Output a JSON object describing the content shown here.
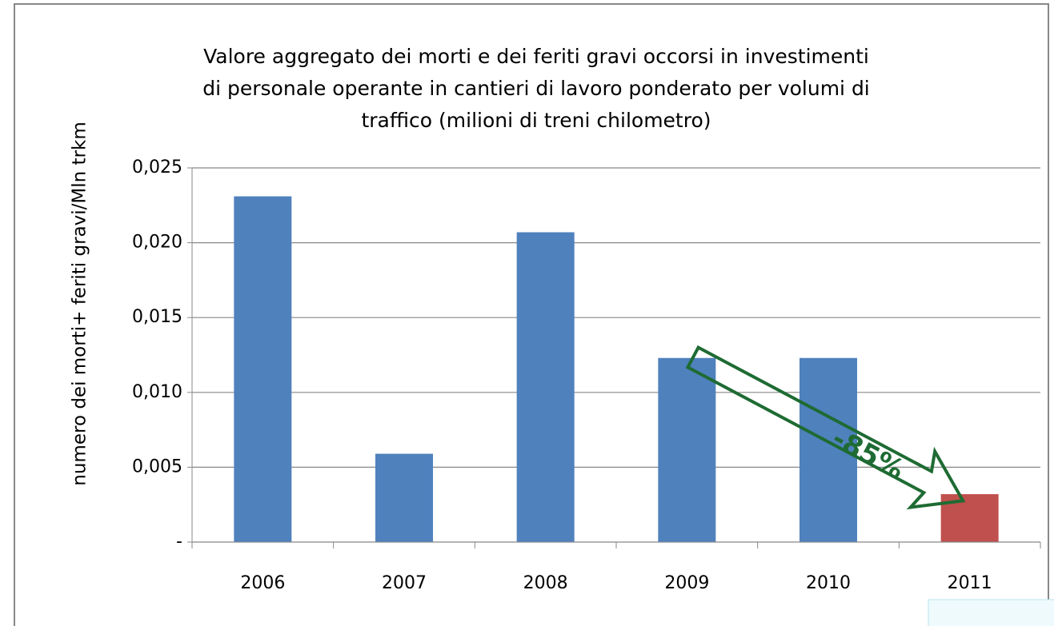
{
  "chart_data": {
    "type": "bar",
    "title": [
      "Valore aggregato dei morti e dei feriti gravi occorsi in investimenti",
      "di personale operante in cantieri di lavoro ponderato per volumi di",
      "traffico (milioni di treni chilometro)"
    ],
    "y_label": "numero dei morti+ feriti gravi/Mln trkm",
    "categories": [
      "2006",
      "2007",
      "2008",
      "2009",
      "2010",
      "2011"
    ],
    "values": [
      0.0231,
      0.0059,
      0.0207,
      0.0123,
      0.0123,
      0.0032
    ],
    "colors": [
      "#4f81bd",
      "#4f81bd",
      "#4f81bd",
      "#4f81bd",
      "#4f81bd",
      "#c0504d"
    ],
    "ylim": [
      0,
      0.025
    ],
    "yticks": [
      {
        "value": 0,
        "label": "-"
      },
      {
        "value": 0.005,
        "label": "0,005"
      },
      {
        "value": 0.01,
        "label": "0,010"
      },
      {
        "value": 0.015,
        "label": "0,015"
      },
      {
        "value": 0.02,
        "label": "0,020"
      },
      {
        "value": 0.025,
        "label": "0,025"
      }
    ],
    "grid": true,
    "annotation": "-85%"
  }
}
